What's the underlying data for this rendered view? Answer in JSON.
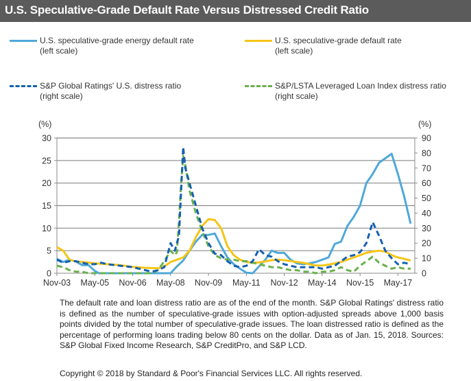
{
  "header": {
    "title": "U.S. Speculative-Grade Default Rate Versus Distressed  Credit Ratio"
  },
  "legend": [
    {
      "label1": "U.S. speculative-grade energy default rate",
      "label2": "(left scale)",
      "color": "#4fa8d8",
      "style": "solid"
    },
    {
      "label1": "U.S. speculative-grade default rate",
      "label2": "(left scale)",
      "color": "#f5c518",
      "style": "solid"
    },
    {
      "label1": "S&P Global Ratings' U.S. distress ratio",
      "label2": "(right scale)",
      "color": "#1560b0",
      "style": "dashed"
    },
    {
      "label1": "S&P/LSTA Leveraged Loan Index distress ratio",
      "label2": "(right scale)",
      "color": "#6ab04c",
      "style": "dashed"
    }
  ],
  "chart_data": {
    "type": "line",
    "title": "U.S. Speculative-Grade Default Rate Versus Distressed  Credit Ratio",
    "left_axis": {
      "label": "(%)",
      "ylim": [
        0,
        30
      ],
      "ticks": [
        "0",
        "5",
        "10",
        "15",
        "20",
        "25",
        "30"
      ]
    },
    "right_axis": {
      "label": "(%)",
      "ylim": [
        0,
        90
      ],
      "ticks": [
        "0",
        "10",
        "20",
        "30",
        "40",
        "50",
        "60",
        "70",
        "80",
        "90"
      ]
    },
    "x_ticks": [
      "Nov-03",
      "May-05",
      "Nov-06",
      "May-08",
      "Nov-09",
      "May-11",
      "Nov-12",
      "May-14",
      "Nov-15",
      "May-17"
    ],
    "x_range_months": [
      0,
      170
    ],
    "grid": true,
    "series": [
      {
        "name": "U.S. speculative-grade energy default rate",
        "axis": "left",
        "color": "#4fa8d8",
        "x": [
          0,
          3,
          6,
          9,
          12,
          15,
          18,
          20,
          24,
          30,
          36,
          42,
          48,
          54,
          57,
          60,
          63,
          66,
          69,
          72,
          75,
          78,
          81,
          84,
          87,
          90,
          93,
          96,
          99,
          102,
          105,
          108,
          111,
          114,
          117,
          120,
          123,
          126,
          129,
          132,
          135,
          138,
          141,
          144,
          147,
          150,
          153,
          156,
          159,
          162,
          165,
          167,
          168
        ],
        "y": [
          3.2,
          2.5,
          3.0,
          2.6,
          1.8,
          1.8,
          0.5,
          0,
          0,
          0,
          0,
          0,
          0,
          0,
          1.5,
          2.8,
          5.0,
          7.0,
          8.5,
          8.5,
          8.8,
          6.0,
          3.5,
          2.0,
          1.0,
          0.1,
          0,
          1.5,
          3.0,
          5.0,
          4.5,
          4.5,
          3.0,
          2.2,
          2.0,
          2.2,
          2.5,
          3.0,
          3.5,
          6.5,
          7.0,
          10.5,
          12.5,
          15.0,
          20.0,
          22.0,
          24.5,
          25.5,
          26.5,
          22.0,
          17.0,
          13.0,
          11.0
        ]
      },
      {
        "name": "U.S. speculative-grade default rate",
        "axis": "left",
        "color": "#f5c518",
        "x": [
          0,
          3,
          6,
          9,
          12,
          18,
          24,
          30,
          36,
          42,
          48,
          51,
          54,
          57,
          60,
          63,
          66,
          69,
          72,
          75,
          78,
          81,
          84,
          87,
          90,
          93,
          96,
          99,
          102,
          105,
          108,
          111,
          114,
          117,
          120,
          123,
          126,
          129,
          132,
          135,
          138,
          141,
          144,
          147,
          150,
          153,
          156,
          159,
          162,
          165,
          168
        ],
        "y": [
          5.8,
          5.0,
          3.0,
          2.6,
          2.5,
          2.2,
          2.0,
          1.8,
          1.4,
          1.2,
          1.1,
          1.5,
          2.5,
          3.0,
          3.5,
          5.0,
          8.0,
          10.5,
          12.0,
          11.8,
          10.0,
          6.0,
          4.0,
          3.0,
          2.5,
          2.3,
          2.4,
          2.6,
          2.9,
          3.0,
          2.9,
          2.7,
          2.5,
          2.3,
          2.0,
          1.7,
          1.7,
          1.9,
          2.2,
          2.5,
          3.0,
          3.5,
          4.0,
          4.5,
          4.8,
          5.0,
          4.8,
          4.0,
          3.5,
          3.2,
          2.8
        ]
      },
      {
        "name": "S&P Global Ratings' U.S. distress ratio",
        "axis": "right",
        "color": "#1560b0",
        "x": [
          0,
          3,
          6,
          9,
          12,
          15,
          18,
          21,
          24,
          30,
          36,
          42,
          45,
          48,
          51,
          54,
          56,
          57,
          58,
          59,
          60,
          61,
          63,
          66,
          69,
          72,
          75,
          78,
          81,
          84,
          87,
          90,
          93,
          96,
          99,
          102,
          105,
          108,
          111,
          114,
          117,
          120,
          123,
          126,
          129,
          132,
          135,
          138,
          141,
          144,
          147,
          150,
          153,
          156,
          159,
          162,
          165,
          168
        ],
        "y": [
          9,
          7,
          8,
          8,
          7,
          6,
          6,
          7,
          6,
          5,
          4,
          2,
          1,
          2,
          4,
          20,
          15,
          20,
          25,
          55,
          84,
          70,
          60,
          45,
          30,
          20,
          13,
          12,
          8,
          5,
          4,
          5,
          8,
          16,
          12,
          11,
          8,
          6,
          5,
          4,
          4,
          4,
          4,
          3,
          4,
          5,
          8,
          11,
          12,
          14,
          20,
          34,
          25,
          15,
          10,
          6,
          7,
          6
        ]
      },
      {
        "name": "S&P/LSTA Leveraged Loan Index distress ratio",
        "axis": "right",
        "color": "#6ab04c",
        "x": [
          0,
          3,
          6,
          9,
          12,
          15,
          18,
          21,
          24,
          30,
          36,
          42,
          45,
          48,
          51,
          54,
          56,
          57,
          58,
          59,
          60,
          61,
          63,
          66,
          69,
          72,
          75,
          78,
          81,
          84,
          87,
          90,
          93,
          96,
          99,
          102,
          105,
          108,
          111,
          114,
          117,
          120,
          123,
          126,
          129,
          132,
          135,
          138,
          141,
          144,
          147,
          150,
          153,
          156,
          159,
          162,
          165,
          168
        ],
        "y": [
          5,
          4,
          2,
          1,
          1,
          0,
          0,
          0,
          0,
          0,
          0,
          0,
          0,
          2,
          8,
          15,
          12,
          14,
          35,
          60,
          78,
          72,
          55,
          40,
          28,
          18,
          12,
          10,
          9,
          9,
          8,
          8,
          7,
          6,
          5,
          4,
          4,
          3,
          2,
          2,
          1,
          1,
          0,
          1,
          1,
          2,
          4,
          2,
          1,
          5,
          8,
          11,
          7,
          5,
          3,
          4,
          3,
          3
        ]
      }
    ]
  },
  "footnote": "The default rate and loan distress ratio are as of the end of the month. S&P  Global Ratings' distress ratio is defined as the number of speculative-grade  issues with option-adjusted spreads above 1,000 basis points divided by the total  number of speculative-grade issues. The loan distressed ratio is defined as the  percentage of performing loans trading below 80 cents on the dollar. Data as of  Jan. 15, 2018. Sources: S&P Global Fixed Income Research, S&P CreditPro, and  S&P LCD.",
  "copyright": "Copyright © 2018 by Standard & Poor's Financial Services LLC. All rights reserved."
}
